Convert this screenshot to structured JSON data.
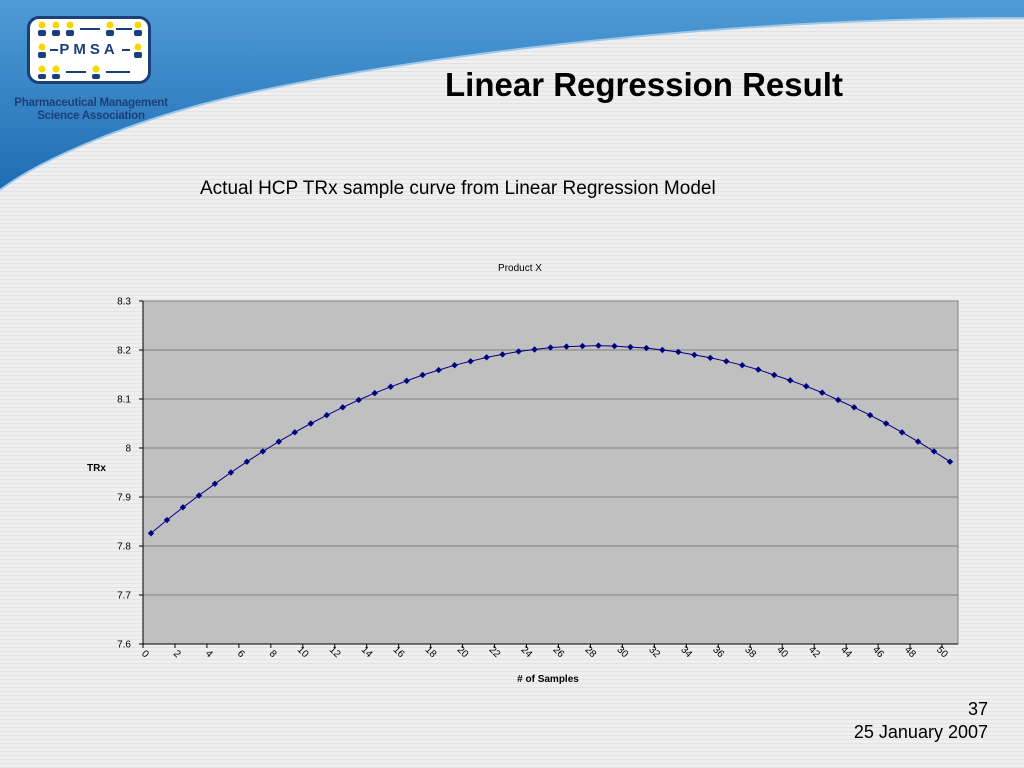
{
  "header": {
    "logo_text": "PMSA",
    "org_name_line1": "Pharmaceutical Management",
    "org_name_line2": "Science Association",
    "title": "Linear Regression Result"
  },
  "subtitle": "Actual HCP TRx sample curve from Linear Regression Model",
  "footer": {
    "page_number": "37",
    "date": "25 January 2007"
  },
  "colors": {
    "banner": "#2f7fc2",
    "logo_blue": "#1b3f7a",
    "logo_yellow": "#f5d800",
    "plot_bg": "#c0c0c0",
    "series": "#000080"
  },
  "chart_data": {
    "type": "line",
    "title": "Product X",
    "xlabel": "# of Samples",
    "ylabel": "TRx",
    "xlim": [
      0,
      51
    ],
    "ylim": [
      7.6,
      8.3
    ],
    "x_ticks": [
      "0",
      "2",
      "4",
      "6",
      "8",
      "10",
      "12",
      "14",
      "16",
      "18",
      "20",
      "22",
      "24",
      "26",
      "28",
      "30",
      "32",
      "34",
      "36",
      "38",
      "40",
      "42",
      "44",
      "46",
      "48",
      "50"
    ],
    "y_ticks": [
      "7.6",
      "7.7",
      "7.8",
      "7.9",
      "8",
      "8.1",
      "8.2",
      "8.3"
    ],
    "grid": "horizontal",
    "markers": "diamond",
    "series": [
      {
        "x": [
          0.5,
          1.5,
          2.5,
          3.5,
          4.5,
          5.5,
          6.5,
          7.5,
          8.5,
          9.5,
          10.5,
          11.5,
          12.5,
          13.5,
          14.5,
          15.5,
          16.5,
          17.5,
          18.5,
          19.5,
          20.5,
          21.5,
          22.5,
          23.5,
          24.5,
          25.5,
          26.5,
          27.5,
          28.5,
          29.5,
          30.5,
          31.5,
          32.5,
          33.5,
          34.5,
          35.5,
          36.5,
          37.5,
          38.5,
          39.5,
          40.5,
          41.5,
          42.5,
          43.5,
          44.5,
          45.5,
          46.5,
          47.5,
          48.5,
          49.5,
          50.5
        ],
        "values": [
          7.826,
          7.853,
          7.879,
          7.903,
          7.927,
          7.95,
          7.972,
          7.993,
          8.013,
          8.032,
          8.05,
          8.067,
          8.083,
          8.098,
          8.112,
          8.125,
          8.137,
          8.149,
          8.159,
          8.169,
          8.177,
          8.185,
          8.191,
          8.197,
          8.201,
          8.205,
          8.207,
          8.208,
          8.209,
          8.208,
          8.206,
          8.204,
          8.2,
          8.196,
          8.19,
          8.184,
          8.177,
          8.169,
          8.16,
          8.149,
          8.138,
          8.126,
          8.113,
          8.098,
          8.083,
          8.067,
          8.05,
          8.032,
          8.013,
          7.993,
          7.972
        ]
      }
    ]
  }
}
